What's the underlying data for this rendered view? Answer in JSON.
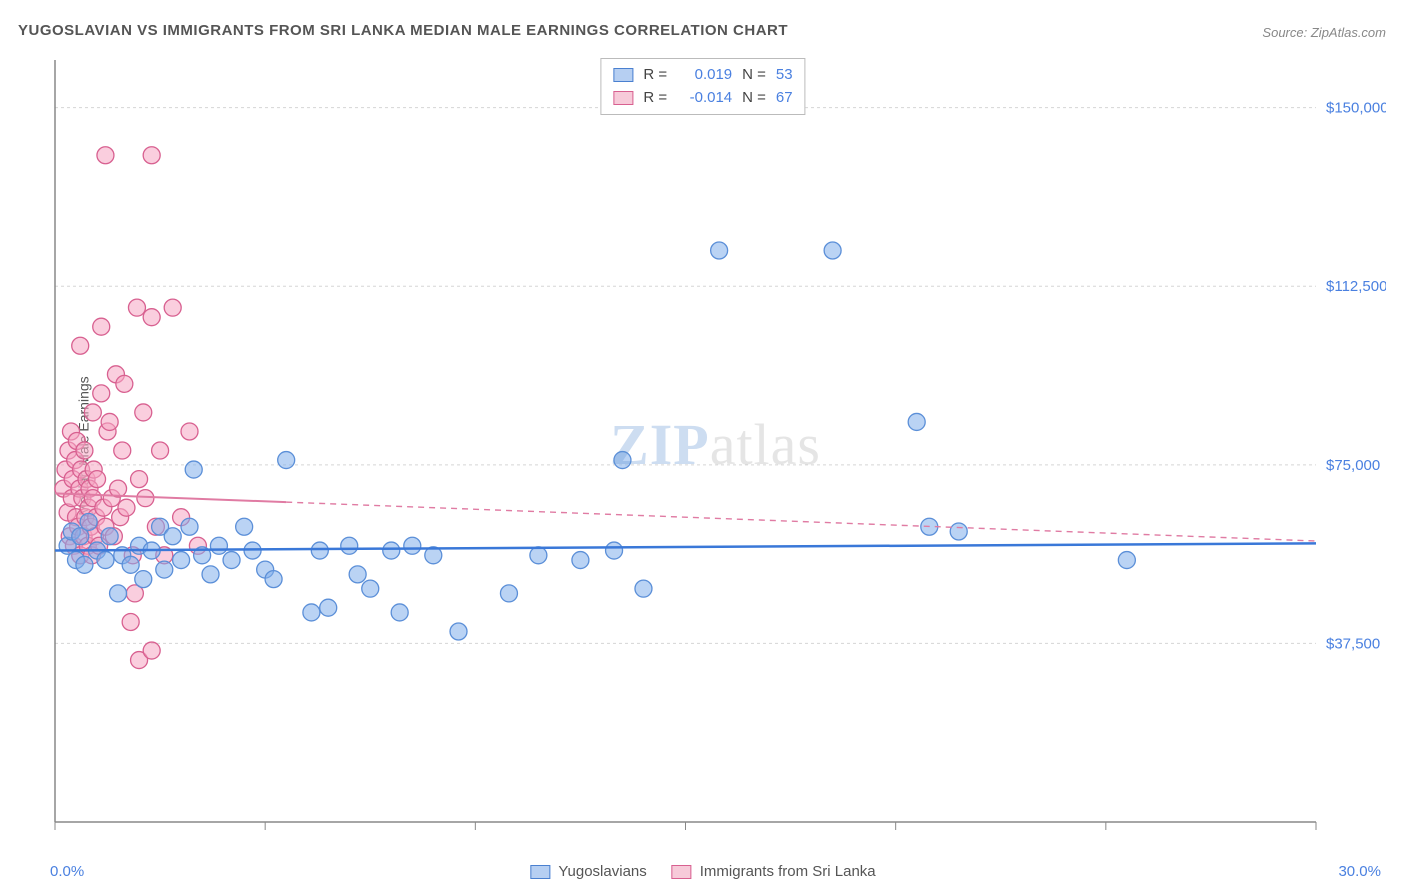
{
  "title": "YUGOSLAVIAN VS IMMIGRANTS FROM SRI LANKA MEDIAN MALE EARNINGS CORRELATION CHART",
  "source_label": "Source:",
  "source_value": "ZipAtlas.com",
  "watermark_a": "ZIP",
  "watermark_b": "atlas",
  "ylabel": "Median Male Earnings",
  "x_axis": {
    "min_label": "0.0%",
    "max_label": "30.0%",
    "min": 0,
    "max": 30
  },
  "y_axis": {
    "min": 0,
    "max": 160000,
    "gridlines": [
      37500,
      75000,
      112500,
      150000
    ],
    "labels": [
      "$37,500",
      "$75,000",
      "$112,500",
      "$150,000"
    ],
    "label_color": "#4a80e0"
  },
  "x_ticks": [
    0,
    5,
    10,
    15,
    20,
    25,
    30
  ],
  "stats": [
    {
      "swatch": "blue",
      "r_label": "R =",
      "r": "0.019",
      "n_label": "N =",
      "n": "53"
    },
    {
      "swatch": "pink",
      "r_label": "R =",
      "r": "-0.014",
      "n_label": "N =",
      "n": "67"
    }
  ],
  "legend": [
    {
      "swatch": "blue",
      "label": "Yugoslavians"
    },
    {
      "swatch": "pink",
      "label": "Immigrants from Sri Lanka"
    }
  ],
  "series": {
    "blue": {
      "marker_fill": "rgba(130,175,235,0.55)",
      "marker_stroke": "#5b8fd8",
      "marker_r": 8.5,
      "trend": {
        "x1": 0,
        "y1": 57000,
        "x2": 30,
        "y2": 58500,
        "stroke": "#3a78d8",
        "width": 2.5,
        "solid_until_x": 30
      },
      "points": [
        [
          0.3,
          58000
        ],
        [
          0.4,
          61000
        ],
        [
          0.5,
          55000
        ],
        [
          0.6,
          60000
        ],
        [
          0.7,
          54000
        ],
        [
          0.8,
          63000
        ],
        [
          1.0,
          57000
        ],
        [
          1.2,
          55000
        ],
        [
          1.3,
          60000
        ],
        [
          1.5,
          48000
        ],
        [
          1.6,
          56000
        ],
        [
          1.8,
          54000
        ],
        [
          2.0,
          58000
        ],
        [
          2.1,
          51000
        ],
        [
          2.3,
          57000
        ],
        [
          2.5,
          62000
        ],
        [
          2.6,
          53000
        ],
        [
          2.8,
          60000
        ],
        [
          3.0,
          55000
        ],
        [
          3.2,
          62000
        ],
        [
          3.3,
          74000
        ],
        [
          3.5,
          56000
        ],
        [
          3.7,
          52000
        ],
        [
          3.9,
          58000
        ],
        [
          4.2,
          55000
        ],
        [
          4.5,
          62000
        ],
        [
          4.7,
          57000
        ],
        [
          5.0,
          53000
        ],
        [
          5.2,
          51000
        ],
        [
          5.5,
          76000
        ],
        [
          6.1,
          44000
        ],
        [
          6.3,
          57000
        ],
        [
          6.5,
          45000
        ],
        [
          7.0,
          58000
        ],
        [
          7.2,
          52000
        ],
        [
          7.5,
          49000
        ],
        [
          8.0,
          57000
        ],
        [
          8.2,
          44000
        ],
        [
          8.5,
          58000
        ],
        [
          9.0,
          56000
        ],
        [
          9.6,
          40000
        ],
        [
          10.8,
          48000
        ],
        [
          11.5,
          56000
        ],
        [
          12.5,
          55000
        ],
        [
          13.3,
          57000
        ],
        [
          13.5,
          76000
        ],
        [
          14.0,
          49000
        ],
        [
          15.8,
          120000
        ],
        [
          18.5,
          120000
        ],
        [
          20.5,
          84000
        ],
        [
          20.8,
          62000
        ],
        [
          25.5,
          55000
        ],
        [
          21.5,
          61000
        ]
      ]
    },
    "pink": {
      "marker_fill": "rgba(245,165,195,0.55)",
      "marker_stroke": "#d86090",
      "marker_r": 8.5,
      "trend": {
        "x1": 0,
        "y1": 69000,
        "x2": 30,
        "y2": 59000,
        "stroke": "#e07ba3",
        "width": 2,
        "solid_until_x": 5.5
      },
      "points": [
        [
          0.2,
          70000
        ],
        [
          0.25,
          74000
        ],
        [
          0.3,
          65000
        ],
        [
          0.32,
          78000
        ],
        [
          0.35,
          60000
        ],
        [
          0.38,
          82000
        ],
        [
          0.4,
          68000
        ],
        [
          0.42,
          72000
        ],
        [
          0.45,
          58000
        ],
        [
          0.48,
          76000
        ],
        [
          0.5,
          64000
        ],
        [
          0.52,
          80000
        ],
        [
          0.55,
          62000
        ],
        [
          0.58,
          70000
        ],
        [
          0.6,
          56000
        ],
        [
          0.62,
          74000
        ],
        [
          0.65,
          68000
        ],
        [
          0.68,
          60000
        ],
        [
          0.7,
          78000
        ],
        [
          0.72,
          64000
        ],
        [
          0.75,
          72000
        ],
        [
          0.78,
          58000
        ],
        [
          0.8,
          66000
        ],
        [
          0.82,
          70000
        ],
        [
          0.85,
          62000
        ],
        [
          0.88,
          56000
        ],
        [
          0.9,
          68000
        ],
        [
          0.92,
          74000
        ],
        [
          0.95,
          60000
        ],
        [
          0.98,
          64000
        ],
        [
          1.0,
          72000
        ],
        [
          1.05,
          58000
        ],
        [
          1.1,
          90000
        ],
        [
          1.15,
          66000
        ],
        [
          1.2,
          62000
        ],
        [
          1.25,
          82000
        ],
        [
          1.3,
          84000
        ],
        [
          1.35,
          68000
        ],
        [
          1.4,
          60000
        ],
        [
          1.45,
          94000
        ],
        [
          1.5,
          70000
        ],
        [
          1.55,
          64000
        ],
        [
          1.6,
          78000
        ],
        [
          1.65,
          92000
        ],
        [
          1.7,
          66000
        ],
        [
          1.8,
          42000
        ],
        [
          1.85,
          56000
        ],
        [
          1.9,
          48000
        ],
        [
          1.95,
          108000
        ],
        [
          2.0,
          72000
        ],
        [
          2.1,
          86000
        ],
        [
          2.15,
          68000
        ],
        [
          2.3,
          106000
        ],
        [
          2.4,
          62000
        ],
        [
          2.5,
          78000
        ],
        [
          2.6,
          56000
        ],
        [
          2.8,
          108000
        ],
        [
          3.0,
          64000
        ],
        [
          3.2,
          82000
        ],
        [
          3.4,
          58000
        ],
        [
          1.2,
          140000
        ],
        [
          2.3,
          140000
        ],
        [
          0.6,
          100000
        ],
        [
          2.0,
          34000
        ],
        [
          2.3,
          36000
        ],
        [
          0.9,
          86000
        ],
        [
          1.1,
          104000
        ]
      ]
    }
  },
  "plot_style": {
    "axis_color": "#888",
    "grid_color": "#d5d5d5",
    "grid_dash": "3,3",
    "background": "#ffffff"
  }
}
